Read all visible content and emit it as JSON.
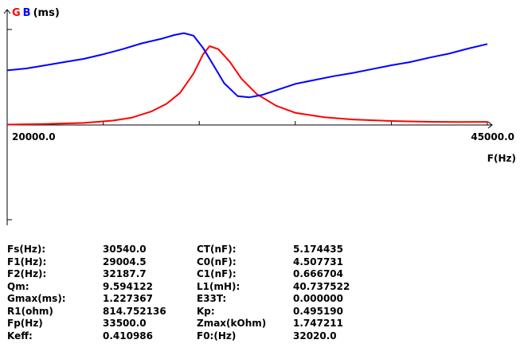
{
  "legend": {
    "g_label": "G",
    "b_label": "B",
    "unit": "(ms)"
  },
  "chart_data": {
    "type": "line",
    "xlabel": "F(Hz)",
    "xlim": [
      20000.0,
      45000.0
    ],
    "x_tick_labels": [
      "20000.0",
      "45000.0"
    ],
    "ylim": [
      0,
      1.45
    ],
    "grid": false,
    "legend_placement": "top-left",
    "series": [
      {
        "name": "G",
        "color": "#ff0000",
        "points": [
          [
            20000,
            0.006
          ],
          [
            22000,
            0.015
          ],
          [
            24000,
            0.032
          ],
          [
            25500,
            0.068
          ],
          [
            26500,
            0.115
          ],
          [
            27500,
            0.21
          ],
          [
            28300,
            0.33
          ],
          [
            29000,
            0.5
          ],
          [
            29700,
            0.8
          ],
          [
            30200,
            1.1
          ],
          [
            30540,
            1.227
          ],
          [
            31000,
            1.18
          ],
          [
            31600,
            0.98
          ],
          [
            32200,
            0.72
          ],
          [
            33000,
            0.48
          ],
          [
            34000,
            0.3
          ],
          [
            35000,
            0.19
          ],
          [
            36500,
            0.12
          ],
          [
            38000,
            0.085
          ],
          [
            40000,
            0.062
          ],
          [
            42000,
            0.05
          ],
          [
            43500,
            0.046
          ],
          [
            45000,
            0.048
          ]
        ]
      },
      {
        "name": "B",
        "color": "#0000ff",
        "points": [
          [
            20000,
            0.85
          ],
          [
            21000,
            0.88
          ],
          [
            22000,
            0.93
          ],
          [
            23000,
            0.98
          ],
          [
            24000,
            1.03
          ],
          [
            25000,
            1.1
          ],
          [
            26000,
            1.18
          ],
          [
            27000,
            1.27
          ],
          [
            28000,
            1.34
          ],
          [
            28700,
            1.4
          ],
          [
            29200,
            1.43
          ],
          [
            29700,
            1.39
          ],
          [
            30200,
            1.2
          ],
          [
            30800,
            0.9
          ],
          [
            31300,
            0.65
          ],
          [
            32000,
            0.45
          ],
          [
            32600,
            0.43
          ],
          [
            33300,
            0.47
          ],
          [
            34000,
            0.54
          ],
          [
            35000,
            0.64
          ],
          [
            36000,
            0.7
          ],
          [
            37000,
            0.76
          ],
          [
            38000,
            0.81
          ],
          [
            39000,
            0.87
          ],
          [
            40000,
            0.93
          ],
          [
            41000,
            0.98
          ],
          [
            42000,
            1.05
          ],
          [
            43000,
            1.11
          ],
          [
            44000,
            1.19
          ],
          [
            45000,
            1.26
          ]
        ]
      }
    ]
  },
  "params": [
    [
      "Fs(Hz):",
      "30540.0",
      "CT(nF):",
      "5.174435"
    ],
    [
      "F1(Hz):",
      "29004.5",
      "C0(nF):",
      "4.507731"
    ],
    [
      "F2(Hz):",
      "32187.7",
      "C1(nF):",
      "0.666704"
    ],
    [
      "Qm:",
      "9.594122",
      "L1(mH):",
      "40.737522"
    ],
    [
      "Gmax(ms):",
      "1.227367",
      "E33T:",
      "0.000000"
    ],
    [
      "R1(ohm)",
      "814.752136",
      "Kp:",
      "0.495190"
    ],
    [
      "Fp(Hz)",
      "33500.0",
      "Zmax(kOhm)",
      "1.747211"
    ],
    [
      "Keff:",
      "0.410986",
      "F0:(Hz)",
      "32020.0"
    ]
  ]
}
